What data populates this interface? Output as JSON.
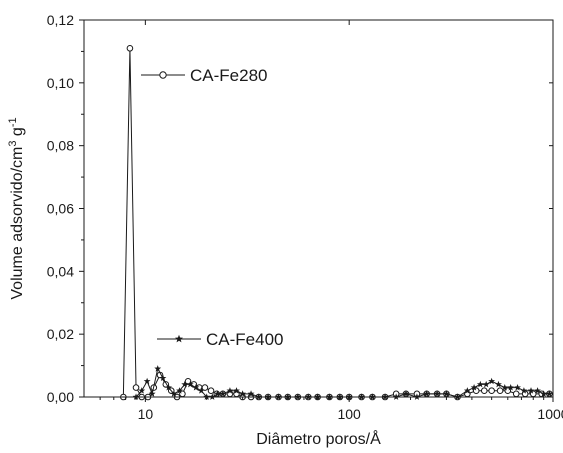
{
  "chart_data": {
    "type": "line",
    "title": "",
    "xlabel": "Diâmetro poros/Å",
    "ylabel": "Volume adsorvido/cm³g⁻¹",
    "ylabel_parts": [
      "Volume adsorvido/cm",
      "3",
      " g",
      "-1"
    ],
    "x_scale": "log",
    "xlim": [
      5,
      1000
    ],
    "ylim": [
      0,
      0.12
    ],
    "x_ticks": [
      10,
      100,
      1000
    ],
    "x_tick_labels": [
      "10",
      "100",
      "1000"
    ],
    "y_ticks": [
      0,
      0.02,
      0.04,
      0.06,
      0.08,
      0.1,
      0.12
    ],
    "y_tick_labels": [
      "0,00",
      "0,02",
      "0,04",
      "0,06",
      "0,08",
      "0,10",
      "0,12"
    ],
    "grid": false,
    "series": [
      {
        "name": "CA-Fe280",
        "marker": "open-circle",
        "points": [
          [
            7.8,
            0.0
          ],
          [
            8.4,
            0.111
          ],
          [
            9.0,
            0.003
          ],
          [
            9.6,
            0.0
          ],
          [
            10.3,
            0.0
          ],
          [
            11.0,
            0.003
          ],
          [
            11.8,
            0.007
          ],
          [
            12.6,
            0.004
          ],
          [
            13.4,
            0.002
          ],
          [
            14.3,
            0.0
          ],
          [
            15.2,
            0.001
          ],
          [
            16.2,
            0.005
          ],
          [
            17.3,
            0.004
          ],
          [
            18.4,
            0.003
          ],
          [
            19.6,
            0.003
          ],
          [
            21.0,
            0.002
          ],
          [
            22.4,
            0.001
          ],
          [
            24,
            0.001
          ],
          [
            26,
            0.001
          ],
          [
            28,
            0.001
          ],
          [
            30,
            0.0
          ],
          [
            33,
            0.0
          ],
          [
            36,
            0.0
          ],
          [
            40,
            0.0
          ],
          [
            45,
            0.0
          ],
          [
            50,
            0.0
          ],
          [
            56,
            0.0
          ],
          [
            63,
            0.0
          ],
          [
            70,
            0.0
          ],
          [
            80,
            0.0
          ],
          [
            90,
            0.0
          ],
          [
            100,
            0.0
          ],
          [
            115,
            0.0
          ],
          [
            130,
            0.0
          ],
          [
            150,
            0.0
          ],
          [
            170,
            0.001
          ],
          [
            190,
            0.001
          ],
          [
            215,
            0.001
          ],
          [
            240,
            0.001
          ],
          [
            270,
            0.001
          ],
          [
            300,
            0.001
          ],
          [
            340,
            0.0
          ],
          [
            380,
            0.001
          ],
          [
            420,
            0.002
          ],
          [
            460,
            0.002
          ],
          [
            500,
            0.002
          ],
          [
            550,
            0.002
          ],
          [
            600,
            0.002
          ],
          [
            660,
            0.001
          ],
          [
            730,
            0.001
          ],
          [
            800,
            0.001
          ],
          [
            880,
            0.001
          ],
          [
            960,
            0.001
          ]
        ]
      },
      {
        "name": "CA-Fe400",
        "marker": "star",
        "points": [
          [
            9.0,
            0.0
          ],
          [
            9.6,
            0.002
          ],
          [
            10.2,
            0.005
          ],
          [
            10.8,
            0.001
          ],
          [
            11.5,
            0.009
          ],
          [
            12.2,
            0.006
          ],
          [
            13.0,
            0.003
          ],
          [
            13.8,
            0.001
          ],
          [
            14.7,
            0.002
          ],
          [
            15.6,
            0.004
          ],
          [
            16.6,
            0.004
          ],
          [
            17.7,
            0.003
          ],
          [
            18.8,
            0.002
          ],
          [
            20.0,
            0.0
          ],
          [
            21.3,
            0.0
          ],
          [
            22.6,
            0.001
          ],
          [
            24,
            0.001
          ],
          [
            26,
            0.002
          ],
          [
            28,
            0.002
          ],
          [
            30,
            0.001
          ],
          [
            33,
            0.001
          ],
          [
            36,
            0.0
          ],
          [
            40,
            0.0
          ],
          [
            45,
            0.0
          ],
          [
            50,
            0.0
          ],
          [
            56,
            0.0
          ],
          [
            63,
            0.0
          ],
          [
            70,
            0.0
          ],
          [
            80,
            0.0
          ],
          [
            90,
            0.0
          ],
          [
            100,
            0.0
          ],
          [
            115,
            0.0
          ],
          [
            130,
            0.0
          ],
          [
            150,
            0.0
          ],
          [
            170,
            0.0
          ],
          [
            190,
            0.001
          ],
          [
            215,
            0.0
          ],
          [
            240,
            0.001
          ],
          [
            270,
            0.001
          ],
          [
            300,
            0.001
          ],
          [
            340,
            0.0
          ],
          [
            380,
            0.002
          ],
          [
            410,
            0.003
          ],
          [
            440,
            0.004
          ],
          [
            470,
            0.004
          ],
          [
            500,
            0.005
          ],
          [
            540,
            0.004
          ],
          [
            580,
            0.003
          ],
          [
            620,
            0.003
          ],
          [
            670,
            0.003
          ],
          [
            720,
            0.002
          ],
          [
            780,
            0.002
          ],
          [
            840,
            0.002
          ],
          [
            900,
            0.001
          ],
          [
            960,
            0.001
          ]
        ]
      }
    ]
  }
}
